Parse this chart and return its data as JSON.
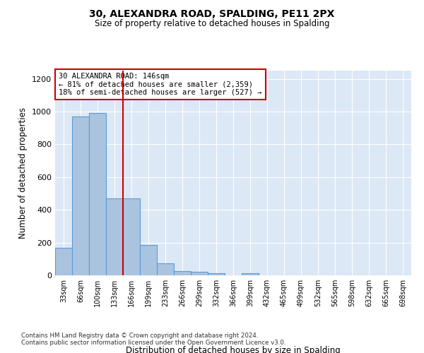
{
  "title1": "30, ALEXANDRA ROAD, SPALDING, PE11 2PX",
  "title2": "Size of property relative to detached houses in Spalding",
  "xlabel": "Distribution of detached houses by size in Spalding",
  "ylabel": "Number of detached properties",
  "categories": [
    "33sqm",
    "66sqm",
    "100sqm",
    "133sqm",
    "166sqm",
    "199sqm",
    "233sqm",
    "266sqm",
    "299sqm",
    "332sqm",
    "366sqm",
    "399sqm",
    "432sqm",
    "465sqm",
    "499sqm",
    "532sqm",
    "565sqm",
    "598sqm",
    "632sqm",
    "665sqm",
    "698sqm"
  ],
  "values": [
    170,
    970,
    990,
    470,
    470,
    185,
    75,
    28,
    20,
    15,
    0,
    15,
    0,
    0,
    0,
    0,
    0,
    0,
    0,
    0,
    0
  ],
  "bar_color": "#aac4e0",
  "bar_edge_color": "#5b9bd5",
  "red_line_x": 3.5,
  "annotation_text": "30 ALEXANDRA ROAD: 146sqm\n← 81% of detached houses are smaller (2,359)\n18% of semi-detached houses are larger (527) →",
  "annotation_box_color": "#ffffff",
  "annotation_box_edge": "#cc0000",
  "ylim": [
    0,
    1250
  ],
  "yticks": [
    0,
    200,
    400,
    600,
    800,
    1000,
    1200
  ],
  "background_color": "#dce8f5",
  "footer_line1": "Contains HM Land Registry data © Crown copyright and database right 2024.",
  "footer_line2": "Contains public sector information licensed under the Open Government Licence v3.0."
}
